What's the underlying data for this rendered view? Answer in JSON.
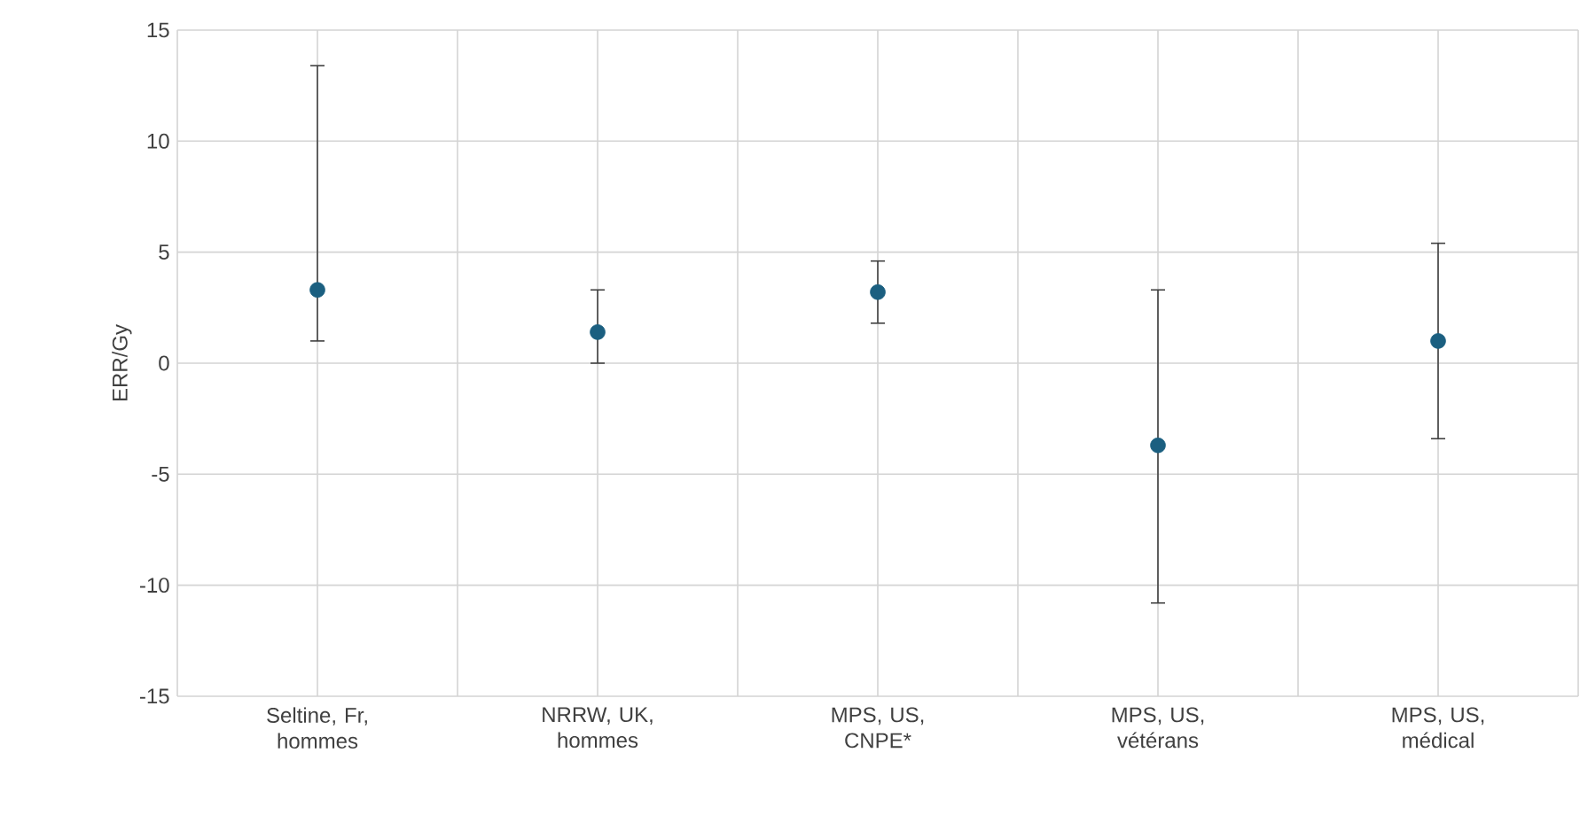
{
  "chart_data": {
    "type": "scatter",
    "ylabel": "ERR/Gy",
    "categories": [
      "Seltine, Fr, hommes",
      "NRRW, UK, hommes",
      "MPS, US, CNPE*",
      "MPS, US, vétérans",
      "MPS, US, médical"
    ],
    "series": [
      {
        "color": "#1b5f80",
        "values": [
          3.3,
          1.4,
          3.2,
          -3.7,
          1.0
        ],
        "errors": [
          [
            1.0,
            13.4
          ],
          [
            0.0,
            3.3
          ],
          [
            1.8,
            4.6
          ],
          [
            -10.8,
            3.3
          ],
          [
            -3.4,
            5.4
          ]
        ]
      }
    ],
    "ylim": [
      -15,
      15
    ],
    "yticks": [
      -15,
      -10,
      -5,
      0,
      5,
      10,
      15
    ],
    "grid": true
  }
}
